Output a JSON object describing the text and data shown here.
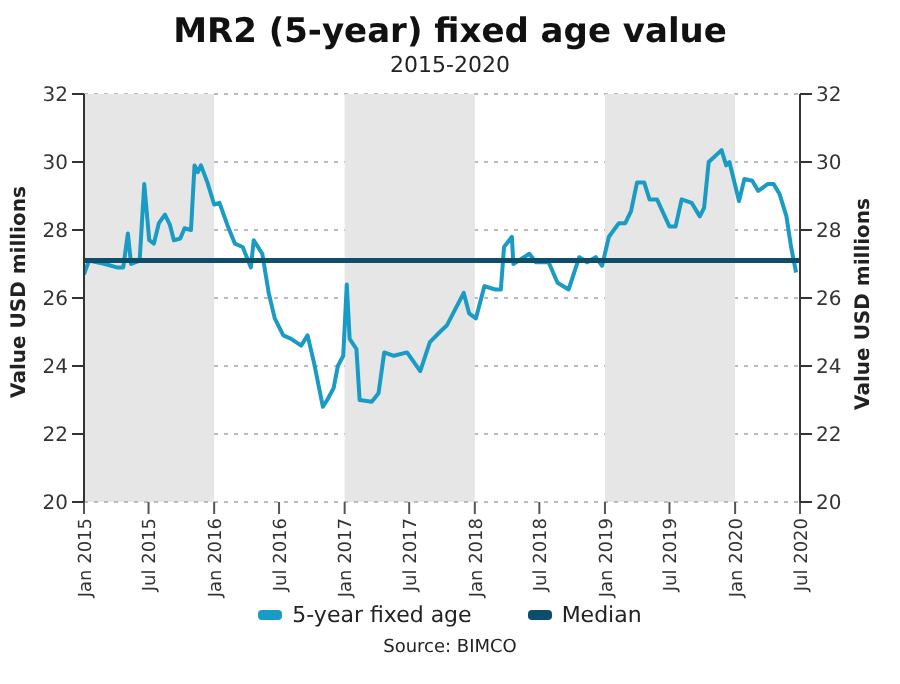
{
  "chart_data": {
    "type": "line",
    "title": "MR2 (5-year) fixed age value",
    "subtitle": "2015-2020",
    "ylabel": "Value USD millions",
    "y2label": "Value USD millions",
    "x": [
      "2015-01-01",
      "2015-01-15",
      "2015-03-01",
      "2015-04-03",
      "2015-04-21",
      "2015-05-04",
      "2015-05-13",
      "2015-06-06",
      "2015-06-19",
      "2015-07-03",
      "2015-07-16",
      "2015-07-30",
      "2015-08-16",
      "2015-08-30",
      "2015-09-10",
      "2015-09-28",
      "2015-10-10",
      "2015-10-28",
      "2015-11-07",
      "2015-11-16",
      "2015-11-25",
      "2015-12-13",
      "2016-01-01",
      "2016-01-16",
      "2016-02-07",
      "2016-02-28",
      "2016-03-21",
      "2016-04-13",
      "2016-04-21",
      "2016-05-15",
      "2016-06-02",
      "2016-06-19",
      "2016-07-13",
      "2016-08-04",
      "2016-09-01",
      "2016-09-19",
      "2016-10-07",
      "2016-11-01",
      "2016-11-13",
      "2016-12-01",
      "2016-12-13",
      "2016-12-28",
      "2017-01-07",
      "2017-01-15",
      "2017-02-03",
      "2017-02-12",
      "2017-03-18",
      "2017-04-06",
      "2017-04-22",
      "2017-05-19",
      "2017-06-25",
      "2017-08-01",
      "2017-08-28",
      "2017-09-25",
      "2017-10-15",
      "2017-12-01",
      "2017-12-16",
      "2018-01-04",
      "2018-01-28",
      "2018-02-27",
      "2018-03-15",
      "2018-03-24",
      "2018-04-15",
      "2018-04-19",
      "2018-06-03",
      "2018-06-21",
      "2018-07-27",
      "2018-08-21",
      "2018-09-21",
      "2018-10-21",
      "2018-11-12",
      "2018-12-06",
      "2018-12-24",
      "2019-01-12",
      "2019-02-09",
      "2019-02-27",
      "2019-03-15",
      "2019-04-01",
      "2019-04-21",
      "2019-05-06",
      "2019-05-27",
      "2019-07-01",
      "2019-07-18",
      "2019-08-04",
      "2019-09-01",
      "2019-09-24",
      "2019-10-06",
      "2019-10-19",
      "2019-11-24",
      "2019-12-07",
      "2019-12-16",
      "2020-01-12",
      "2020-01-27",
      "2020-02-18",
      "2020-03-06",
      "2020-04-01",
      "2020-04-18",
      "2020-05-05",
      "2020-05-24",
      "2020-06-06",
      "2020-06-20"
    ],
    "series": [
      {
        "name": "5-year fixed age",
        "color": "#1a9bc4",
        "values": [
          26.7,
          27.1,
          27.0,
          26.9,
          26.9,
          27.9,
          27.0,
          27.1,
          29.35,
          27.7,
          27.6,
          28.2,
          28.45,
          28.15,
          27.7,
          27.75,
          28.05,
          28.0,
          29.9,
          29.7,
          29.9,
          29.4,
          28.75,
          28.8,
          28.15,
          27.6,
          27.5,
          26.9,
          27.7,
          27.3,
          26.15,
          25.4,
          24.9,
          24.8,
          24.6,
          24.9,
          24.1,
          22.8,
          23.0,
          23.35,
          24.0,
          24.3,
          26.4,
          24.8,
          24.5,
          23.0,
          22.95,
          23.2,
          24.4,
          24.3,
          24.4,
          23.85,
          24.7,
          25.0,
          25.2,
          26.15,
          25.55,
          25.4,
          26.35,
          26.25,
          26.25,
          27.5,
          27.8,
          27.0,
          27.3,
          27.05,
          27.05,
          26.45,
          26.25,
          27.2,
          27.05,
          27.2,
          26.95,
          27.8,
          28.2,
          28.2,
          28.55,
          29.4,
          29.4,
          28.9,
          28.9,
          28.1,
          28.1,
          28.9,
          28.8,
          28.4,
          28.65,
          30.0,
          30.35,
          29.9,
          30.0,
          28.85,
          29.5,
          29.45,
          29.15,
          29.35,
          29.35,
          29.05,
          28.4,
          27.5,
          26.75
        ]
      },
      {
        "name": "Median",
        "color": "#0d4e6b",
        "x": [
          "2015-01-01",
          "2020-07-01"
        ],
        "values": [
          27.1,
          27.1
        ]
      }
    ],
    "xlim": [
      "2015-01-01",
      "2020-07-01"
    ],
    "xticks": [
      {
        "value": "2015-01-01",
        "label": "Jan 2015"
      },
      {
        "value": "2015-07-01",
        "label": "Jul 2015"
      },
      {
        "value": "2016-01-01",
        "label": "Jan 2016"
      },
      {
        "value": "2016-07-01",
        "label": "Jul 2016"
      },
      {
        "value": "2017-01-01",
        "label": "Jan 2017"
      },
      {
        "value": "2017-07-01",
        "label": "Jul 2017"
      },
      {
        "value": "2018-01-01",
        "label": "Jan 2018"
      },
      {
        "value": "2018-07-01",
        "label": "Jul 2018"
      },
      {
        "value": "2019-01-01",
        "label": "Jan 2019"
      },
      {
        "value": "2019-07-01",
        "label": "Jul 2019"
      },
      {
        "value": "2020-01-01",
        "label": "Jan 2020"
      },
      {
        "value": "2020-07-01",
        "label": "Jul 2020"
      }
    ],
    "ylim": [
      20,
      32
    ],
    "yticks": [
      20,
      22,
      24,
      26,
      28,
      30,
      32
    ],
    "y2lim": [
      20,
      32
    ],
    "y2ticks": [
      20,
      22,
      24,
      26,
      28,
      30,
      32
    ],
    "bands": [
      {
        "axis": "x",
        "from": "2015-01-01",
        "to": "2016-01-01",
        "color": "#e6e6e6"
      },
      {
        "axis": "x",
        "from": "2017-01-01",
        "to": "2018-01-01",
        "color": "#e6e6e6"
      },
      {
        "axis": "x",
        "from": "2019-01-01",
        "to": "2020-01-01",
        "color": "#e6e6e6"
      }
    ],
    "grid": "y",
    "legend": "bottom",
    "marker": "none",
    "line_style": "solid",
    "annotations": [
      "Source: BIMCO"
    ]
  }
}
